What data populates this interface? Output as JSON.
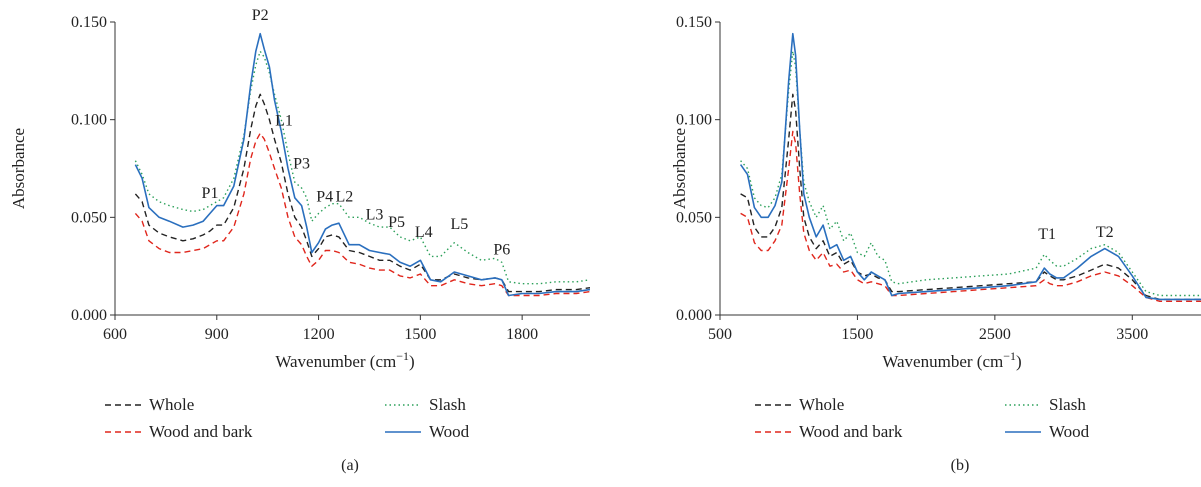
{
  "chart_data": [
    {
      "panel_label": "(a)",
      "type": "line",
      "xlabel": "Wavenumber (cm",
      "xlabel_sup": "−1",
      "xlabel_close": ")",
      "ylabel": "Absorbance",
      "xlim": [
        600,
        2000
      ],
      "ylim": [
        0,
        0.15
      ],
      "xticks": [
        600,
        900,
        1200,
        1500,
        1800
      ],
      "xtick_labels": [
        "600",
        "900",
        "1200",
        "1500",
        "1800"
      ],
      "yticks": [
        0,
        0.05,
        0.1,
        0.15
      ],
      "ytick_labels": [
        "0.000",
        "0.050",
        "0.100",
        "0.150"
      ],
      "annotations": [
        {
          "text": "P1",
          "x": 880,
          "y": 0.06
        },
        {
          "text": "P2",
          "x": 1028,
          "y": 0.151
        },
        {
          "text": "L1",
          "x": 1098,
          "y": 0.097
        },
        {
          "text": "P3",
          "x": 1150,
          "y": 0.075
        },
        {
          "text": "P4",
          "x": 1218,
          "y": 0.058
        },
        {
          "text": "L2",
          "x": 1276,
          "y": 0.058
        },
        {
          "text": "L3",
          "x": 1365,
          "y": 0.049
        },
        {
          "text": "P5",
          "x": 1430,
          "y": 0.045
        },
        {
          "text": "L4",
          "x": 1510,
          "y": 0.04
        },
        {
          "text": "L5",
          "x": 1615,
          "y": 0.044
        },
        {
          "text": "P6",
          "x": 1740,
          "y": 0.031
        }
      ],
      "series": [
        {
          "name": "Whole",
          "style": "dashed",
          "color": "#222222",
          "x": [
            660,
            680,
            700,
            730,
            760,
            800,
            830,
            860,
            880,
            900,
            920,
            950,
            980,
            1000,
            1015,
            1028,
            1040,
            1055,
            1070,
            1090,
            1110,
            1130,
            1150,
            1165,
            1180,
            1200,
            1220,
            1240,
            1260,
            1290,
            1320,
            1350,
            1380,
            1410,
            1440,
            1470,
            1500,
            1530,
            1560,
            1600,
            1640,
            1680,
            1720,
            1740,
            1760,
            1800,
            1850,
            1900,
            1960,
            2000
          ],
          "y": [
            0.062,
            0.058,
            0.046,
            0.042,
            0.04,
            0.038,
            0.039,
            0.041,
            0.043,
            0.046,
            0.046,
            0.055,
            0.075,
            0.095,
            0.107,
            0.113,
            0.108,
            0.1,
            0.09,
            0.078,
            0.062,
            0.05,
            0.045,
            0.038,
            0.03,
            0.034,
            0.04,
            0.041,
            0.04,
            0.033,
            0.032,
            0.03,
            0.028,
            0.028,
            0.025,
            0.023,
            0.026,
            0.018,
            0.018,
            0.021,
            0.019,
            0.018,
            0.019,
            0.018,
            0.012,
            0.012,
            0.012,
            0.013,
            0.013,
            0.014
          ]
        },
        {
          "name": "Wood and bark",
          "style": "dashed",
          "color": "#e0261c",
          "x": [
            660,
            680,
            700,
            730,
            760,
            800,
            830,
            860,
            880,
            900,
            920,
            950,
            980,
            1000,
            1015,
            1028,
            1040,
            1055,
            1070,
            1090,
            1110,
            1130,
            1150,
            1165,
            1180,
            1200,
            1220,
            1240,
            1260,
            1290,
            1320,
            1350,
            1380,
            1410,
            1440,
            1470,
            1500,
            1530,
            1560,
            1600,
            1640,
            1680,
            1720,
            1740,
            1760,
            1800,
            1850,
            1900,
            1960,
            2000
          ],
          "y": [
            0.052,
            0.048,
            0.038,
            0.034,
            0.032,
            0.032,
            0.033,
            0.034,
            0.036,
            0.038,
            0.038,
            0.045,
            0.062,
            0.08,
            0.089,
            0.093,
            0.09,
            0.083,
            0.075,
            0.065,
            0.05,
            0.04,
            0.036,
            0.03,
            0.025,
            0.028,
            0.033,
            0.033,
            0.032,
            0.027,
            0.026,
            0.024,
            0.023,
            0.023,
            0.02,
            0.019,
            0.021,
            0.015,
            0.015,
            0.018,
            0.016,
            0.015,
            0.016,
            0.015,
            0.01,
            0.01,
            0.01,
            0.011,
            0.011,
            0.012
          ]
        },
        {
          "name": "Slash",
          "style": "dotted",
          "color": "#2ca05a",
          "x": [
            660,
            680,
            700,
            730,
            760,
            800,
            830,
            860,
            880,
            900,
            920,
            950,
            980,
            1000,
            1015,
            1028,
            1040,
            1055,
            1070,
            1090,
            1110,
            1130,
            1150,
            1165,
            1180,
            1200,
            1220,
            1240,
            1260,
            1290,
            1320,
            1350,
            1380,
            1410,
            1440,
            1470,
            1500,
            1530,
            1560,
            1600,
            1640,
            1680,
            1720,
            1740,
            1760,
            1800,
            1850,
            1900,
            1960,
            2000
          ],
          "y": [
            0.079,
            0.072,
            0.062,
            0.058,
            0.056,
            0.054,
            0.053,
            0.054,
            0.056,
            0.058,
            0.06,
            0.07,
            0.092,
            0.115,
            0.128,
            0.135,
            0.132,
            0.124,
            0.113,
            0.1,
            0.083,
            0.068,
            0.065,
            0.06,
            0.048,
            0.052,
            0.055,
            0.057,
            0.057,
            0.05,
            0.05,
            0.047,
            0.045,
            0.045,
            0.04,
            0.038,
            0.04,
            0.03,
            0.03,
            0.037,
            0.032,
            0.028,
            0.029,
            0.027,
            0.017,
            0.016,
            0.016,
            0.017,
            0.017,
            0.018
          ]
        },
        {
          "name": "Wood",
          "style": "solid",
          "color": "#2a6fbe",
          "x": [
            660,
            680,
            700,
            730,
            760,
            800,
            830,
            860,
            880,
            900,
            920,
            950,
            980,
            1000,
            1015,
            1028,
            1040,
            1055,
            1070,
            1090,
            1110,
            1130,
            1150,
            1165,
            1180,
            1200,
            1220,
            1240,
            1260,
            1290,
            1320,
            1350,
            1380,
            1410,
            1440,
            1470,
            1500,
            1530,
            1560,
            1600,
            1640,
            1680,
            1720,
            1740,
            1760,
            1800,
            1850,
            1900,
            1960,
            2000
          ],
          "y": [
            0.077,
            0.07,
            0.055,
            0.05,
            0.048,
            0.045,
            0.046,
            0.048,
            0.052,
            0.056,
            0.056,
            0.066,
            0.09,
            0.118,
            0.135,
            0.144,
            0.136,
            0.127,
            0.11,
            0.094,
            0.075,
            0.06,
            0.056,
            0.045,
            0.032,
            0.037,
            0.044,
            0.046,
            0.047,
            0.036,
            0.036,
            0.033,
            0.032,
            0.031,
            0.027,
            0.025,
            0.028,
            0.018,
            0.017,
            0.022,
            0.02,
            0.018,
            0.019,
            0.018,
            0.01,
            0.011,
            0.011,
            0.012,
            0.012,
            0.013
          ]
        }
      ],
      "legend": [
        "Whole",
        "Slash",
        "Wood and bark",
        "Wood"
      ],
      "grid": false
    },
    {
      "panel_label": "(b)",
      "type": "line",
      "xlabel": "Wavenumber (cm",
      "xlabel_sup": "−1",
      "xlabel_close": ")",
      "ylabel": "Absorbance",
      "xlim": [
        500,
        4000
      ],
      "ylim": [
        0,
        0.15
      ],
      "xticks": [
        500,
        1500,
        2500,
        3500
      ],
      "xtick_labels": [
        "500",
        "1500",
        "2500",
        "3500"
      ],
      "yticks": [
        0,
        0.05,
        0.1,
        0.15
      ],
      "ytick_labels": [
        "0.000",
        "0.050",
        "0.100",
        "0.150"
      ],
      "annotations": [
        {
          "text": "T1",
          "x": 2880,
          "y": 0.039
        },
        {
          "text": "T2",
          "x": 3300,
          "y": 0.04
        }
      ],
      "series": [
        {
          "name": "Whole",
          "style": "dashed",
          "color": "#222222",
          "x": [
            650,
            700,
            750,
            800,
            850,
            900,
            950,
            1000,
            1030,
            1050,
            1080,
            1110,
            1150,
            1200,
            1250,
            1300,
            1350,
            1400,
            1450,
            1500,
            1550,
            1600,
            1650,
            1700,
            1750,
            1800,
            2000,
            2200,
            2400,
            2600,
            2800,
            2860,
            2900,
            2950,
            3000,
            3100,
            3200,
            3300,
            3400,
            3500,
            3600,
            3700,
            3800,
            4000
          ],
          "y": [
            0.062,
            0.06,
            0.045,
            0.04,
            0.04,
            0.045,
            0.055,
            0.09,
            0.113,
            0.105,
            0.075,
            0.05,
            0.04,
            0.034,
            0.038,
            0.03,
            0.032,
            0.026,
            0.028,
            0.022,
            0.02,
            0.021,
            0.019,
            0.018,
            0.012,
            0.012,
            0.013,
            0.014,
            0.015,
            0.016,
            0.017,
            0.022,
            0.02,
            0.018,
            0.018,
            0.02,
            0.023,
            0.026,
            0.024,
            0.018,
            0.01,
            0.008,
            0.008,
            0.008
          ]
        },
        {
          "name": "Wood and bark",
          "style": "dashed",
          "color": "#e0261c",
          "x": [
            650,
            700,
            750,
            800,
            850,
            900,
            950,
            1000,
            1030,
            1050,
            1080,
            1110,
            1150,
            1200,
            1250,
            1300,
            1350,
            1400,
            1450,
            1500,
            1550,
            1600,
            1650,
            1700,
            1750,
            1800,
            2000,
            2200,
            2400,
            2600,
            2800,
            2860,
            2900,
            2950,
            3000,
            3100,
            3200,
            3300,
            3400,
            3500,
            3600,
            3700,
            3800,
            4000
          ],
          "y": [
            0.052,
            0.05,
            0.037,
            0.033,
            0.033,
            0.038,
            0.046,
            0.075,
            0.094,
            0.088,
            0.062,
            0.042,
            0.033,
            0.028,
            0.032,
            0.025,
            0.026,
            0.022,
            0.023,
            0.018,
            0.016,
            0.017,
            0.016,
            0.015,
            0.01,
            0.01,
            0.011,
            0.012,
            0.013,
            0.014,
            0.015,
            0.018,
            0.016,
            0.015,
            0.015,
            0.017,
            0.02,
            0.022,
            0.02,
            0.015,
            0.009,
            0.007,
            0.007,
            0.007
          ]
        },
        {
          "name": "Slash",
          "style": "dotted",
          "color": "#2ca05a",
          "x": [
            650,
            700,
            750,
            800,
            850,
            900,
            950,
            1000,
            1030,
            1050,
            1080,
            1110,
            1150,
            1200,
            1250,
            1300,
            1350,
            1400,
            1450,
            1500,
            1550,
            1600,
            1650,
            1700,
            1750,
            1800,
            2000,
            2200,
            2400,
            2600,
            2800,
            2860,
            2900,
            2950,
            3000,
            3100,
            3200,
            3300,
            3400,
            3500,
            3600,
            3700,
            3800,
            4000
          ],
          "y": [
            0.079,
            0.075,
            0.06,
            0.056,
            0.055,
            0.06,
            0.072,
            0.115,
            0.135,
            0.127,
            0.095,
            0.068,
            0.058,
            0.05,
            0.056,
            0.044,
            0.048,
            0.038,
            0.042,
            0.032,
            0.03,
            0.037,
            0.03,
            0.028,
            0.017,
            0.016,
            0.018,
            0.019,
            0.02,
            0.021,
            0.024,
            0.031,
            0.028,
            0.025,
            0.025,
            0.029,
            0.034,
            0.036,
            0.032,
            0.022,
            0.012,
            0.01,
            0.01,
            0.01
          ]
        },
        {
          "name": "Wood",
          "style": "solid",
          "color": "#2a6fbe",
          "x": [
            650,
            700,
            750,
            800,
            850,
            900,
            950,
            1000,
            1030,
            1050,
            1080,
            1110,
            1150,
            1200,
            1250,
            1300,
            1350,
            1400,
            1450,
            1500,
            1550,
            1600,
            1650,
            1700,
            1750,
            1800,
            2000,
            2200,
            2400,
            2600,
            2800,
            2860,
            2900,
            2950,
            3000,
            3100,
            3200,
            3300,
            3400,
            3500,
            3600,
            3700,
            3800,
            4000
          ],
          "y": [
            0.077,
            0.072,
            0.055,
            0.05,
            0.05,
            0.056,
            0.068,
            0.12,
            0.144,
            0.133,
            0.095,
            0.062,
            0.05,
            0.04,
            0.046,
            0.034,
            0.036,
            0.028,
            0.03,
            0.022,
            0.018,
            0.022,
            0.02,
            0.018,
            0.01,
            0.011,
            0.012,
            0.013,
            0.014,
            0.015,
            0.017,
            0.024,
            0.021,
            0.019,
            0.019,
            0.024,
            0.03,
            0.034,
            0.03,
            0.02,
            0.009,
            0.008,
            0.008,
            0.008
          ]
        }
      ],
      "legend": [
        "Whole",
        "Slash",
        "Wood and bark",
        "Wood"
      ],
      "grid": false
    }
  ]
}
